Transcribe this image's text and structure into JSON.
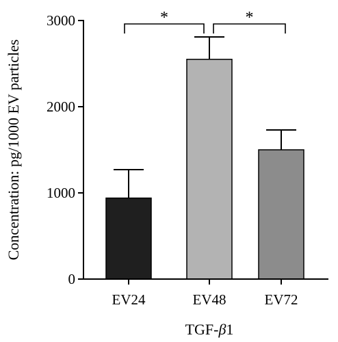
{
  "chart_data": {
    "type": "bar",
    "categories": [
      "EV24",
      "EV48",
      "EV72"
    ],
    "values": [
      940,
      2550,
      1500
    ],
    "errors": [
      330,
      260,
      230
    ],
    "colors": [
      "#1f1f1f",
      "#b3b3b3",
      "#8c8c8c"
    ],
    "xlabel": "TGF-",
    "xlabel_symbol": "β",
    "xlabel_suffix": "1",
    "ylabel": "Concentration: pg/1000 EV particles",
    "ylim": [
      0,
      3000
    ],
    "yticks": [
      0,
      1000,
      2000,
      3000
    ],
    "grid": false,
    "significance": [
      {
        "from": 0,
        "to": 1,
        "label": "*",
        "level": 3000
      },
      {
        "from": 1,
        "to": 2,
        "label": "*",
        "level": 3000
      }
    ]
  }
}
